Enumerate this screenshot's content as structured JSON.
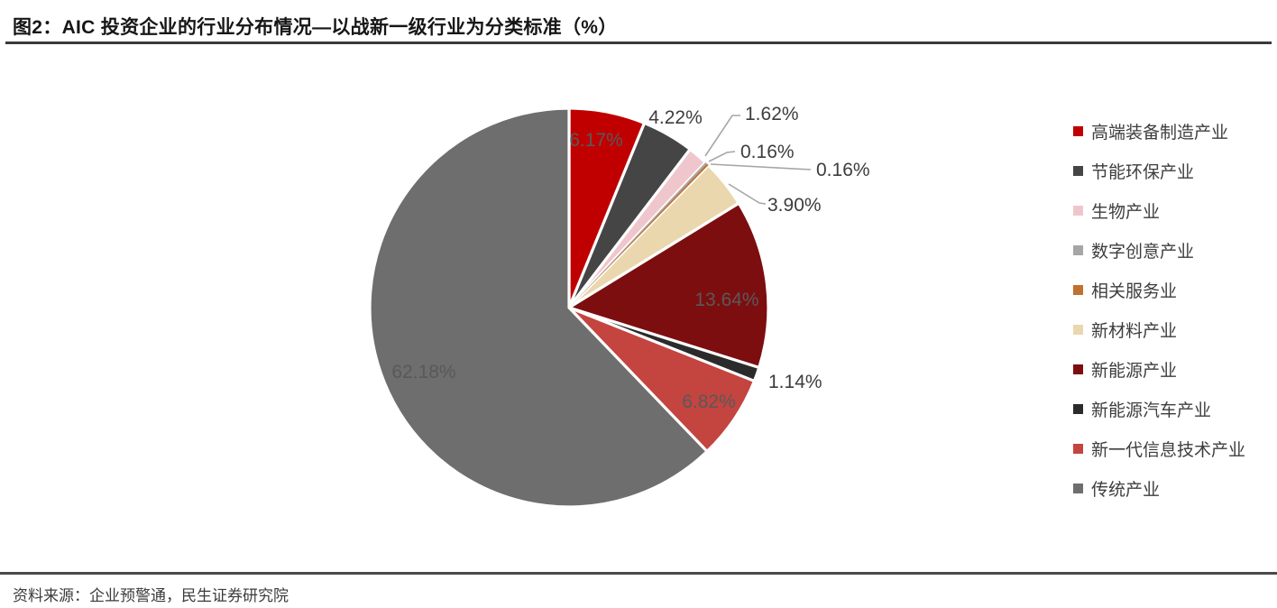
{
  "header": {
    "title": "图2：AIC 投资企业的行业分布情况—以战新一级行业为分类标准（%）"
  },
  "footer": {
    "source": "资料来源：企业预警通，民生证券研究院"
  },
  "chart_data": {
    "type": "pie",
    "title": "AIC 投资企业的行业分布情况—以战新一级行业为分类标准（%）",
    "unit": "%",
    "start_angle_deg": 0,
    "direction": "clockwise",
    "legend_position": "right",
    "grid": false,
    "slices": [
      {
        "label": "高端装备制造产业",
        "value": 6.17,
        "shown_label": "6.17%",
        "color": "#C00000"
      },
      {
        "label": "节能环保产业",
        "value": 4.22,
        "shown_label": "4.22%",
        "color": "#454545"
      },
      {
        "label": "生物产业",
        "value": 1.62,
        "shown_label": "1.62%",
        "color": "#F0C6CD"
      },
      {
        "label": "数字创意产业",
        "value": 0.16,
        "shown_label": "0.16%",
        "color": "#A6A6A6"
      },
      {
        "label": "相关服务业",
        "value": 0.16,
        "shown_label": "0.16%",
        "color": "#BF7130"
      },
      {
        "label": "新材料产业",
        "value": 3.9,
        "shown_label": "3.90%",
        "color": "#EAD7AE"
      },
      {
        "label": "新能源产业",
        "value": 13.64,
        "shown_label": "13.64%",
        "color": "#7D0E10"
      },
      {
        "label": "新能源汽车产业",
        "value": 1.14,
        "shown_label": "1.14%",
        "color": "#2B2B2B"
      },
      {
        "label": "新一代信息技术产业",
        "value": 6.82,
        "shown_label": "6.82%",
        "color": "#C44440"
      },
      {
        "label": "传统产业",
        "value": 62.18,
        "shown_label": "62.18%",
        "color": "#6E6E6E"
      }
    ],
    "colors": {
      "inside_label_text": "#595959",
      "outside_label_text": "#3d3d3d",
      "leader_line": "#A6A6A6",
      "slice_border": "#FFFFFF"
    }
  }
}
